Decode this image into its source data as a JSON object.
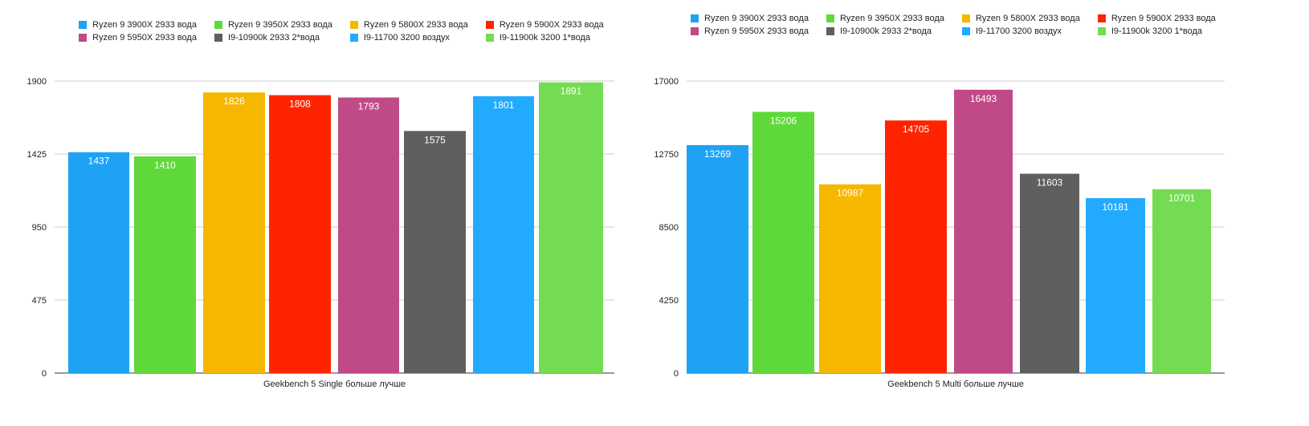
{
  "legend": [
    {
      "label": "Ryzen 9 3900X 2933 вода",
      "color": "#1EA2F4"
    },
    {
      "label": "Ryzen 9 3950X 2933 вода",
      "color": "#5FD93A"
    },
    {
      "label": "Ryzen 9 5800X 2933 вода",
      "color": "#F6B700"
    },
    {
      "label": "Ryzen 9 5900X 2933 вода",
      "color": "#FF2400"
    },
    {
      "label": "Ryzen 9 5950X 2933 вода",
      "color": "#C04A86"
    },
    {
      "label": "I9-10900k 2933 2*вода",
      "color": "#5F5F5F"
    },
    {
      "label": "I9-11700 3200 воздух",
      "color": "#22AAFF"
    },
    {
      "label": "I9-11900k 3200 1*вода",
      "color": "#74DC52"
    }
  ],
  "chart_data": [
    {
      "type": "bar",
      "xlabel": "Geekbench 5 Single больше лучше",
      "ylim": [
        0,
        1900
      ],
      "yticks": [
        0,
        475,
        950,
        1425,
        1900
      ],
      "ytick_labels": [
        "0",
        "475",
        "950",
        "1425",
        "1900"
      ],
      "grid": true,
      "legend_position": "top",
      "series": [
        {
          "name": "Ryzen 9 3900X 2933 вода",
          "value": 1437,
          "label": "1437",
          "color": "#1EA2F4"
        },
        {
          "name": "Ryzen 9 3950X 2933 вода",
          "value": 1410,
          "label": "1410",
          "color": "#5FD93A"
        },
        {
          "name": "Ryzen 9 5800X 2933 вода",
          "value": 1826,
          "label": "1826",
          "color": "#F6B700"
        },
        {
          "name": "Ryzen 9 5900X 2933 вода",
          "value": 1808,
          "label": "1808",
          "color": "#FF2400"
        },
        {
          "name": "Ryzen 9 5950X 2933 вода",
          "value": 1793,
          "label": "1793",
          "color": "#C04A86"
        },
        {
          "name": "I9-10900k 2933 2*вода",
          "value": 1575,
          "label": "1575",
          "color": "#5F5F5F"
        },
        {
          "name": "I9-11700 3200 воздух",
          "value": 1801,
          "label": "1801",
          "color": "#22AAFF"
        },
        {
          "name": "I9-11900k 3200 1*вода",
          "value": 1891,
          "label": "1891",
          "color": "#74DC52"
        }
      ]
    },
    {
      "type": "bar",
      "xlabel": "Geekbench 5 Multi больше лучше",
      "ylim": [
        0,
        17000
      ],
      "yticks": [
        0,
        4250,
        8500,
        12750,
        17000
      ],
      "ytick_labels": [
        "0",
        "4250",
        "8500",
        "12750",
        "17000"
      ],
      "grid": true,
      "legend_position": "top",
      "series": [
        {
          "name": "Ryzen 9 3900X 2933 вода",
          "value": 13269,
          "label": "13269",
          "color": "#1EA2F4"
        },
        {
          "name": "Ryzen 9 3950X 2933 вода",
          "value": 15206,
          "label": "15206",
          "color": "#5FD93A"
        },
        {
          "name": "Ryzen 9 5800X 2933 вода",
          "value": 10987,
          "label": "10987",
          "color": "#F6B700"
        },
        {
          "name": "Ryzen 9 5900X 2933 вода",
          "value": 14705,
          "label": "14705",
          "color": "#FF2400"
        },
        {
          "name": "Ryzen 9 5950X 2933 вода",
          "value": 16493,
          "label": "16493",
          "color": "#C04A86"
        },
        {
          "name": "I9-10900k 2933 2*вода",
          "value": 11603,
          "label": "11603",
          "color": "#5F5F5F"
        },
        {
          "name": "I9-11700 3200 воздух",
          "value": 10181,
          "label": "10181",
          "color": "#22AAFF"
        },
        {
          "name": "I9-11900k 3200 1*вода",
          "value": 10701,
          "label": "10701",
          "color": "#74DC52"
        }
      ]
    }
  ]
}
